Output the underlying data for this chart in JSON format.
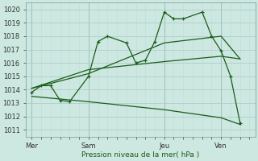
{
  "xlabel": "Pression niveau de la mer( hPa )",
  "ylim": [
    1010.5,
    1020.5
  ],
  "yticks": [
    1011,
    1012,
    1013,
    1014,
    1015,
    1016,
    1017,
    1018,
    1019,
    1020
  ],
  "bg_color": "#cce8e0",
  "grid_major_color": "#b0cccc",
  "grid_minor_color": "#c0dddd",
  "line_color": "#1a5c1a",
  "xtick_labels": [
    "Mer",
    "Sam",
    "Jeu",
    "Ven"
  ],
  "xtick_positions": [
    0,
    3,
    7,
    10
  ],
  "xlim": [
    -0.3,
    11.8
  ],
  "series": [
    {
      "x": [
        0,
        0.5,
        1.0,
        1.5,
        2.0,
        3.0,
        3.5,
        4.0,
        5.0,
        5.5,
        6.0,
        6.5,
        7.0,
        7.5,
        8.0,
        9.0,
        9.5,
        10.0,
        10.5,
        11.0
      ],
      "y": [
        1013.8,
        1014.3,
        1014.3,
        1013.2,
        1013.1,
        1015.0,
        1017.6,
        1018.0,
        1017.5,
        1016.0,
        1016.2,
        1017.6,
        1019.8,
        1019.3,
        1019.3,
        1019.8,
        1018.0,
        1016.9,
        1015.0,
        1011.5
      ],
      "has_marker": true
    },
    {
      "x": [
        0,
        3,
        7,
        10,
        11.0
      ],
      "y": [
        1014.1,
        1015.2,
        1017.5,
        1018.0,
        1016.3
      ],
      "has_marker": false
    },
    {
      "x": [
        0,
        3,
        7,
        10,
        11.0
      ],
      "y": [
        1014.1,
        1015.5,
        1016.1,
        1016.5,
        1016.3
      ],
      "has_marker": false
    },
    {
      "x": [
        0,
        3,
        7,
        10,
        11.0
      ],
      "y": [
        1013.5,
        1013.1,
        1012.5,
        1011.9,
        1011.4
      ],
      "has_marker": false
    }
  ]
}
